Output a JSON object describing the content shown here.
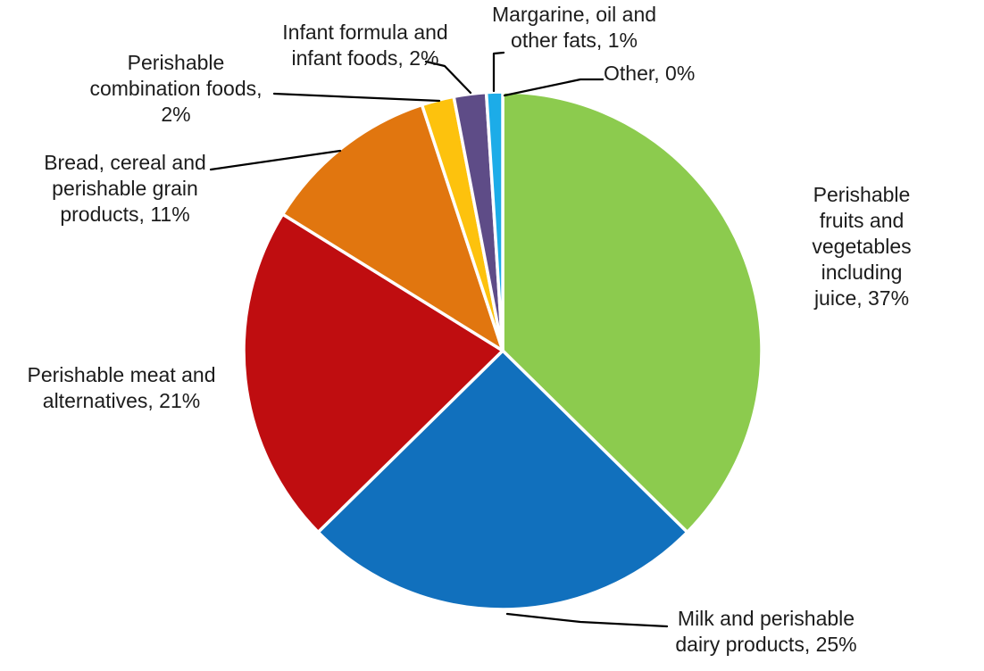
{
  "chart_data": {
    "type": "pie",
    "title": "",
    "start_angle_deg": 0,
    "direction": "clockwise",
    "labels_position": "outside-callouts",
    "legend": "none",
    "background_color": "#FFFFFF",
    "label_text_color": "#1C1C1C",
    "leader_line_color": "#000000",
    "slice_border_color": "#FFFFFF",
    "slices": [
      {
        "id": "perishable-fruits-vegetables",
        "label": "Perishable fruits and vegetables including juice",
        "value": 37,
        "percent_display": "37%",
        "color": "#8CCB4E",
        "label_text": "Perishable fruits and\nvegetables including\njuice, 37%"
      },
      {
        "id": "milk-dairy",
        "label": "Milk and perishable dairy products",
        "value": 25,
        "percent_display": "25%",
        "color": "#1170BD",
        "label_text": "Milk and perishable\ndairy products, 25%"
      },
      {
        "id": "perishable-meat",
        "label": "Perishable meat and alternatives",
        "value": 21,
        "percent_display": "21%",
        "color": "#BF0D10",
        "label_text": "Perishable meat and\nalternatives, 21%"
      },
      {
        "id": "bread-cereal-grain",
        "label": "Bread, cereal and perishable grain products",
        "value": 11,
        "percent_display": "11%",
        "color": "#E1760F",
        "label_text": "Bread, cereal and\nperishable grain\nproducts, 11%"
      },
      {
        "id": "perishable-combination-foods",
        "label": "Perishable combination foods",
        "value": 2,
        "percent_display": "2%",
        "color": "#FDC20D",
        "label_text": "Perishable\ncombination foods,\n2%"
      },
      {
        "id": "infant-formula-foods",
        "label": "Infant formula and infant foods",
        "value": 2,
        "percent_display": "2%",
        "color": "#5E4C87",
        "label_text": "Infant formula and\ninfant foods, 2%"
      },
      {
        "id": "margarine-oil-fats",
        "label": "Margarine, oil and other fats",
        "value": 1,
        "percent_display": "1%",
        "color": "#1CACE8",
        "label_text": "Margarine, oil and\nother fats, 1%"
      },
      {
        "id": "other",
        "label": "Other",
        "value": 0,
        "percent_display": "0%",
        "color": "#A5A5A5",
        "label_text": "Other, 0%"
      }
    ]
  }
}
